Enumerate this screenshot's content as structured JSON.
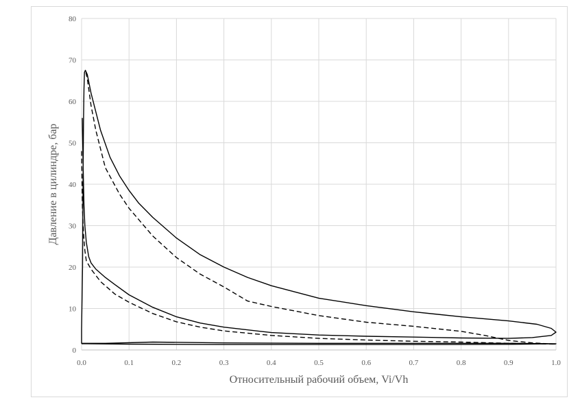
{
  "chart_data": {
    "type": "line",
    "title": "",
    "xlabel": "Относительный рабочий объем, Vi/Vh",
    "ylabel": "Давление в цилиндре, бар",
    "xlim": [
      0,
      1
    ],
    "ylim": [
      0,
      80
    ],
    "x_ticks": [
      "0.0",
      "0.1",
      "0.2",
      "0.3",
      "0.4",
      "0.5",
      "0.6",
      "0.7",
      "0.8",
      "0.9",
      "1.0"
    ],
    "y_ticks": [
      "0",
      "10",
      "20",
      "30",
      "40",
      "50",
      "60",
      "70",
      "80"
    ],
    "grid": true,
    "legend": "none",
    "series": [
      {
        "line_style": "solid",
        "color": "#000000",
        "points": [
          [
            0.0,
            1.5
          ],
          [
            0.1,
            1.4
          ],
          [
            0.3,
            1.3
          ],
          [
            0.5,
            1.3
          ],
          [
            0.7,
            1.3
          ],
          [
            0.9,
            1.35
          ],
          [
            1.0,
            1.5
          ],
          [
            0.9,
            1.6
          ],
          [
            0.7,
            1.6
          ],
          [
            0.5,
            1.6
          ],
          [
            0.3,
            1.7
          ],
          [
            0.15,
            1.9
          ],
          [
            0.05,
            1.6
          ],
          [
            0.0,
            1.6
          ],
          [
            0.0,
            5
          ],
          [
            0.002,
            20
          ],
          [
            0.003,
            40
          ],
          [
            0.004,
            55
          ],
          [
            0.005,
            63
          ],
          [
            0.006,
            67
          ],
          [
            0.008,
            67.5
          ],
          [
            0.012,
            66.5
          ],
          [
            0.02,
            62
          ],
          [
            0.04,
            53
          ],
          [
            0.06,
            46.5
          ],
          [
            0.08,
            42
          ],
          [
            0.1,
            38.5
          ],
          [
            0.12,
            35.5
          ],
          [
            0.15,
            32
          ],
          [
            0.2,
            27
          ],
          [
            0.25,
            23
          ],
          [
            0.3,
            20
          ],
          [
            0.35,
            17.5
          ],
          [
            0.4,
            15.5
          ],
          [
            0.5,
            12.5
          ],
          [
            0.6,
            10.7
          ],
          [
            0.7,
            9.2
          ],
          [
            0.8,
            8.0
          ],
          [
            0.9,
            7.0
          ],
          [
            0.96,
            6.2
          ],
          [
            0.99,
            5.2
          ],
          [
            1.0,
            4.3
          ],
          [
            0.99,
            3.5
          ],
          [
            0.95,
            3.0
          ],
          [
            0.9,
            2.8
          ],
          [
            0.8,
            2.9
          ],
          [
            0.7,
            3.1
          ],
          [
            0.6,
            3.3
          ],
          [
            0.5,
            3.6
          ],
          [
            0.4,
            4.2
          ],
          [
            0.3,
            5.5
          ],
          [
            0.25,
            6.5
          ],
          [
            0.2,
            8.0
          ],
          [
            0.15,
            10.3
          ],
          [
            0.1,
            13.3
          ],
          [
            0.07,
            15.8
          ],
          [
            0.05,
            17.5
          ],
          [
            0.03,
            19.5
          ],
          [
            0.02,
            21.0
          ],
          [
            0.015,
            22.5
          ],
          [
            0.01,
            26
          ],
          [
            0.007,
            30
          ],
          [
            0.005,
            35
          ],
          [
            0.004,
            40
          ],
          [
            0.003,
            46
          ],
          [
            0.002,
            52
          ],
          [
            0.0015,
            56
          ]
        ]
      },
      {
        "line_style": "dashed",
        "color": "#000000",
        "points": [
          [
            0.0,
            48
          ],
          [
            0.001,
            40
          ],
          [
            0.002,
            34
          ],
          [
            0.004,
            28
          ],
          [
            0.007,
            24
          ],
          [
            0.01,
            21.5
          ],
          [
            0.02,
            19.5
          ],
          [
            0.04,
            16.5
          ],
          [
            0.07,
            13.5
          ],
          [
            0.1,
            11.5
          ],
          [
            0.15,
            8.8
          ],
          [
            0.2,
            6.8
          ],
          [
            0.25,
            5.5
          ],
          [
            0.3,
            4.6
          ],
          [
            0.4,
            3.5
          ],
          [
            0.5,
            2.8
          ],
          [
            0.6,
            2.4
          ],
          [
            0.7,
            2.1
          ],
          [
            0.8,
            1.9
          ],
          [
            0.9,
            1.6
          ],
          [
            1.0,
            1.4
          ],
          [
            0.95,
            1.7
          ],
          [
            0.9,
            2.3
          ],
          [
            0.85,
            3.5
          ],
          [
            0.8,
            4.5
          ],
          [
            0.7,
            5.7
          ],
          [
            0.6,
            6.7
          ],
          [
            0.5,
            8.3
          ],
          [
            0.4,
            10.5
          ],
          [
            0.35,
            11.8
          ],
          [
            0.3,
            15.2
          ],
          [
            0.25,
            18.3
          ],
          [
            0.2,
            22.3
          ],
          [
            0.15,
            27.5
          ],
          [
            0.1,
            34.2
          ],
          [
            0.08,
            37.6
          ],
          [
            0.05,
            44
          ],
          [
            0.03,
            53
          ],
          [
            0.02,
            59
          ],
          [
            0.012,
            65.5
          ],
          [
            0.008,
            67.5
          ]
        ]
      }
    ]
  }
}
